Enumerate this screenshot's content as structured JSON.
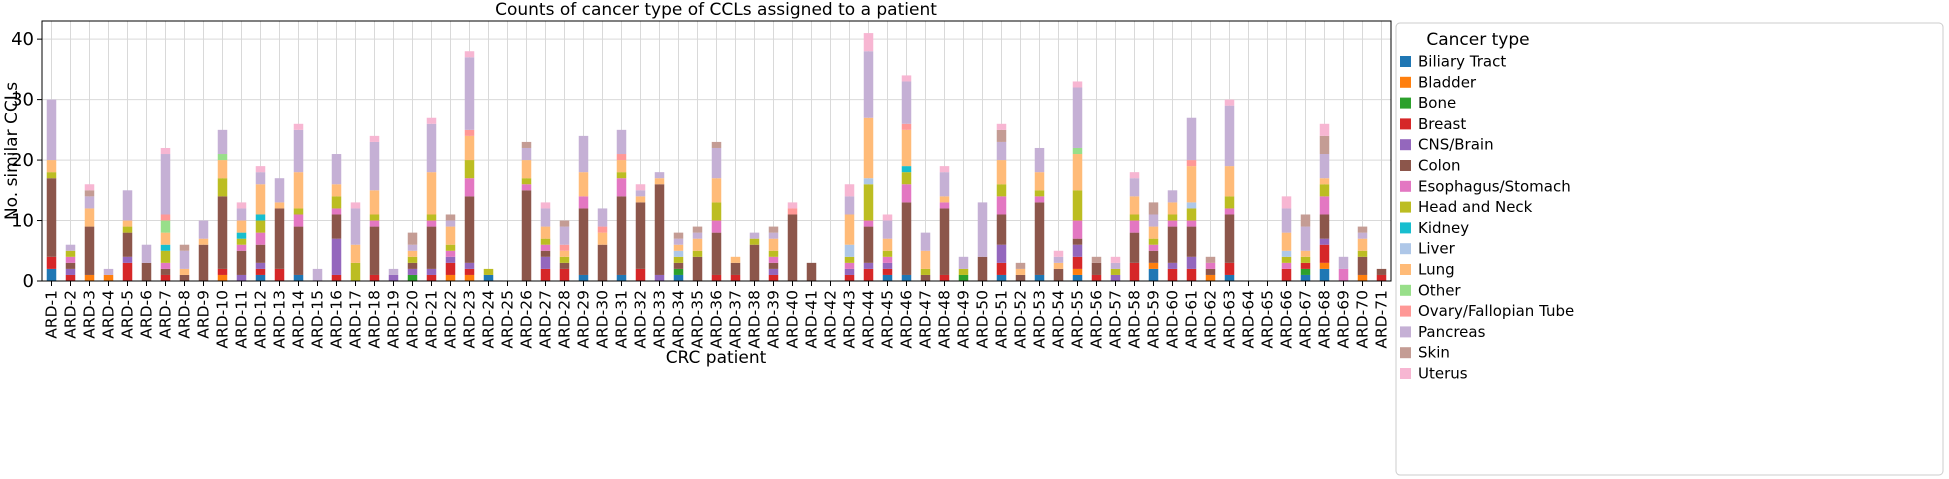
{
  "chart_data": {
    "type": "bar",
    "stacked": true,
    "title": "Counts of cancer type of CCLs assigned to a patient",
    "xlabel": "CRC patient",
    "ylabel": "No. similar CCLs",
    "ylim": [
      0,
      43
    ],
    "yticks": [
      0,
      10,
      20,
      30,
      40
    ],
    "grid": true,
    "legend_title": "Cancer type",
    "legend_position": "right",
    "categories": [
      "ARD-1",
      "ARD-2",
      "ARD-3",
      "ARD-4",
      "ARD-5",
      "ARD-6",
      "ARD-7",
      "ARD-8",
      "ARD-9",
      "ARD-10",
      "ARD-11",
      "ARD-12",
      "ARD-13",
      "ARD-14",
      "ARD-15",
      "ARD-16",
      "ARD-17",
      "ARD-18",
      "ARD-19",
      "ARD-20",
      "ARD-21",
      "ARD-22",
      "ARD-23",
      "ARD-24",
      "ARD-25",
      "ARD-26",
      "ARD-27",
      "ARD-28",
      "ARD-29",
      "ARD-30",
      "ARD-31",
      "ARD-32",
      "ARD-33",
      "ARD-34",
      "ARD-35",
      "ARD-36",
      "ARD-37",
      "ARD-38",
      "ARD-39",
      "ARD-40",
      "ARD-41",
      "ARD-42",
      "ARD-43",
      "ARD-44",
      "ARD-45",
      "ARD-46",
      "ARD-47",
      "ARD-48",
      "ARD-49",
      "ARD-50",
      "ARD-51",
      "ARD-52",
      "ARD-53",
      "ARD-54",
      "ARD-55",
      "ARD-56",
      "ARD-57",
      "ARD-58",
      "ARD-59",
      "ARD-60",
      "ARD-61",
      "ARD-62",
      "ARD-63",
      "ARD-64",
      "ARD-65",
      "ARD-66",
      "ARD-67",
      "ARD-68",
      "ARD-69",
      "ARD-70",
      "ARD-71"
    ],
    "series": [
      {
        "name": "Biliary Tract",
        "color": "#1f77b4",
        "values": [
          2,
          0,
          0,
          0,
          0,
          0,
          0,
          0,
          0,
          0,
          0,
          1,
          0,
          1,
          0,
          0,
          0,
          0,
          0,
          0,
          0,
          0,
          0,
          1,
          0,
          0,
          0,
          0,
          1,
          0,
          1,
          0,
          0,
          1,
          0,
          0,
          0,
          0,
          0,
          0,
          0,
          0,
          0,
          0,
          1,
          1,
          0,
          0,
          0,
          0,
          1,
          0,
          1,
          0,
          1,
          0,
          0,
          0,
          2,
          0,
          0,
          0,
          1,
          0,
          0,
          0,
          1,
          2,
          0,
          0,
          0
        ]
      },
      {
        "name": "Bladder",
        "color": "#ff7f0e",
        "values": [
          0,
          0,
          1,
          1,
          0,
          0,
          0,
          0,
          0,
          1,
          0,
          0,
          0,
          0,
          0,
          0,
          0,
          0,
          0,
          0,
          0,
          1,
          1,
          0,
          0,
          0,
          0,
          0,
          0,
          0,
          0,
          0,
          0,
          0,
          0,
          0,
          0,
          0,
          0,
          0,
          0,
          0,
          0,
          0,
          0,
          0,
          0,
          0,
          0,
          0,
          0,
          0,
          0,
          0,
          1,
          0,
          0,
          0,
          1,
          0,
          0,
          1,
          0,
          0,
          0,
          0,
          0,
          1,
          0,
          1,
          0
        ]
      },
      {
        "name": "Bone",
        "color": "#2ca02c",
        "values": [
          0,
          0,
          0,
          0,
          0,
          0,
          0,
          0,
          0,
          0,
          0,
          0,
          0,
          0,
          0,
          0,
          0,
          0,
          0,
          1,
          0,
          0,
          0,
          0,
          0,
          0,
          0,
          0,
          0,
          0,
          0,
          0,
          0,
          1,
          0,
          0,
          0,
          0,
          0,
          0,
          0,
          0,
          0,
          0,
          0,
          0,
          0,
          0,
          1,
          0,
          0,
          0,
          0,
          0,
          0,
          0,
          0,
          0,
          0,
          0,
          0,
          0,
          0,
          0,
          0,
          0,
          1,
          0,
          0,
          0,
          0
        ]
      },
      {
        "name": "Breast",
        "color": "#d62728",
        "values": [
          2,
          1,
          0,
          0,
          3,
          0,
          1,
          0,
          0,
          1,
          0,
          1,
          2,
          0,
          0,
          1,
          0,
          1,
          0,
          0,
          1,
          2,
          1,
          0,
          0,
          0,
          2,
          2,
          0,
          0,
          0,
          2,
          0,
          0,
          0,
          1,
          1,
          0,
          1,
          0,
          0,
          0,
          1,
          2,
          1,
          0,
          0,
          1,
          0,
          0,
          2,
          0,
          0,
          0,
          2,
          1,
          0,
          3,
          0,
          2,
          2,
          0,
          2,
          0,
          0,
          2,
          1,
          3,
          0,
          0,
          1
        ]
      },
      {
        "name": "CNS/Brain",
        "color": "#9467bd",
        "values": [
          0,
          1,
          0,
          0,
          1,
          0,
          0,
          0,
          0,
          0,
          1,
          1,
          0,
          0,
          0,
          6,
          0,
          0,
          1,
          1,
          1,
          1,
          1,
          0,
          0,
          0,
          2,
          0,
          0,
          0,
          0,
          0,
          1,
          0,
          0,
          0,
          0,
          0,
          1,
          0,
          0,
          0,
          1,
          1,
          1,
          0,
          0,
          0,
          0,
          0,
          3,
          0,
          0,
          0,
          2,
          0,
          1,
          0,
          0,
          1,
          2,
          0,
          0,
          0,
          0,
          0,
          0,
          1,
          0,
          0,
          0
        ]
      },
      {
        "name": "Colon",
        "color": "#8c564b",
        "values": [
          13,
          1,
          8,
          0,
          4,
          3,
          1,
          1,
          6,
          12,
          4,
          3,
          10,
          8,
          0,
          4,
          0,
          8,
          0,
          1,
          7,
          0,
          11,
          0,
          0,
          15,
          1,
          1,
          11,
          6,
          13,
          11,
          15,
          1,
          4,
          7,
          2,
          6,
          1,
          11,
          3,
          0,
          0,
          6,
          0,
          12,
          1,
          11,
          0,
          4,
          5,
          1,
          12,
          2,
          1,
          2,
          0,
          5,
          2,
          6,
          5,
          1,
          8,
          0,
          0,
          0,
          0,
          4,
          0,
          3,
          1
        ]
      },
      {
        "name": "Esophagus/Stomach",
        "color": "#e377c2",
        "values": [
          0,
          1,
          0,
          0,
          0,
          0,
          1,
          0,
          0,
          0,
          1,
          2,
          0,
          2,
          0,
          1,
          0,
          1,
          0,
          0,
          1,
          1,
          3,
          0,
          0,
          1,
          1,
          0,
          2,
          0,
          3,
          0,
          0,
          0,
          0,
          2,
          0,
          0,
          1,
          0,
          0,
          0,
          1,
          1,
          1,
          3,
          0,
          1,
          0,
          0,
          3,
          0,
          1,
          0,
          3,
          0,
          0,
          2,
          1,
          1,
          1,
          1,
          1,
          0,
          0,
          1,
          0,
          3,
          2,
          0,
          0
        ]
      },
      {
        "name": "Head and Neck",
        "color": "#bcbd22",
        "values": [
          1,
          1,
          0,
          0,
          1,
          0,
          2,
          0,
          0,
          3,
          1,
          2,
          0,
          1,
          0,
          2,
          3,
          1,
          0,
          1,
          1,
          1,
          3,
          1,
          0,
          1,
          1,
          1,
          0,
          0,
          1,
          0,
          0,
          1,
          1,
          3,
          0,
          1,
          1,
          0,
          0,
          0,
          1,
          6,
          1,
          2,
          1,
          0,
          1,
          0,
          2,
          0,
          1,
          0,
          5,
          0,
          1,
          1,
          1,
          1,
          2,
          0,
          2,
          0,
          0,
          1,
          1,
          2,
          0,
          1,
          0
        ]
      },
      {
        "name": "Kidney",
        "color": "#17becf",
        "values": [
          0,
          0,
          0,
          0,
          0,
          0,
          1,
          0,
          0,
          0,
          1,
          1,
          0,
          0,
          0,
          0,
          0,
          0,
          0,
          0,
          0,
          0,
          0,
          0,
          0,
          0,
          0,
          0,
          0,
          0,
          0,
          0,
          0,
          0,
          0,
          0,
          0,
          0,
          0,
          0,
          0,
          0,
          0,
          0,
          0,
          1,
          0,
          0,
          0,
          0,
          0,
          0,
          0,
          0,
          0,
          0,
          0,
          0,
          0,
          0,
          0,
          0,
          0,
          0,
          0,
          0,
          0,
          0,
          0,
          0,
          0
        ]
      },
      {
        "name": "Liver",
        "color": "#aec7e8",
        "values": [
          0,
          0,
          0,
          0,
          0,
          0,
          0,
          0,
          0,
          0,
          0,
          0,
          0,
          0,
          0,
          0,
          0,
          0,
          0,
          0,
          0,
          0,
          0,
          0,
          0,
          0,
          0,
          0,
          0,
          0,
          0,
          0,
          0,
          1,
          0,
          0,
          0,
          0,
          0,
          0,
          0,
          0,
          2,
          1,
          0,
          0,
          0,
          0,
          0,
          0,
          0,
          0,
          0,
          0,
          0,
          0,
          0,
          0,
          0,
          0,
          1,
          0,
          0,
          0,
          0,
          1,
          0,
          0,
          0,
          0,
          0
        ]
      },
      {
        "name": "Lung",
        "color": "#ffbb78",
        "values": [
          2,
          0,
          3,
          0,
          1,
          0,
          2,
          1,
          1,
          3,
          2,
          5,
          1,
          6,
          0,
          2,
          3,
          4,
          0,
          1,
          7,
          3,
          4,
          0,
          0,
          3,
          2,
          1,
          4,
          2,
          2,
          1,
          1,
          1,
          2,
          4,
          1,
          0,
          2,
          0,
          0,
          0,
          5,
          10,
          2,
          6,
          3,
          1,
          0,
          0,
          4,
          1,
          3,
          1,
          6,
          0,
          0,
          3,
          2,
          2,
          6,
          0,
          5,
          0,
          0,
          3,
          1,
          1,
          0,
          2,
          0
        ]
      },
      {
        "name": "Other",
        "color": "#98df8a",
        "values": [
          0,
          0,
          0,
          0,
          0,
          0,
          2,
          0,
          0,
          1,
          0,
          0,
          0,
          0,
          0,
          0,
          0,
          0,
          0,
          0,
          0,
          0,
          0,
          0,
          0,
          0,
          0,
          0,
          0,
          0,
          0,
          0,
          0,
          0,
          0,
          0,
          0,
          0,
          0,
          0,
          0,
          0,
          0,
          0,
          0,
          0,
          0,
          0,
          0,
          0,
          0,
          0,
          0,
          0,
          1,
          0,
          0,
          0,
          0,
          0,
          0,
          0,
          0,
          0,
          0,
          0,
          0,
          0,
          0,
          0,
          0
        ]
      },
      {
        "name": "Ovary/Fallopian Tube",
        "color": "#ff9896",
        "values": [
          0,
          0,
          0,
          0,
          0,
          0,
          1,
          0,
          0,
          0,
          0,
          0,
          0,
          0,
          0,
          0,
          0,
          0,
          0,
          0,
          0,
          0,
          1,
          0,
          0,
          0,
          0,
          1,
          0,
          1,
          1,
          0,
          0,
          0,
          0,
          0,
          0,
          0,
          0,
          1,
          0,
          0,
          0,
          0,
          0,
          1,
          0,
          0,
          0,
          0,
          0,
          0,
          0,
          0,
          0,
          0,
          0,
          0,
          0,
          0,
          1,
          0,
          0,
          0,
          0,
          0,
          0,
          0,
          0,
          0,
          0
        ]
      },
      {
        "name": "Pancreas",
        "color": "#c5b0d5",
        "values": [
          10,
          1,
          2,
          1,
          5,
          3,
          10,
          3,
          3,
          4,
          2,
          2,
          4,
          7,
          2,
          5,
          6,
          8,
          1,
          1,
          8,
          1,
          12,
          0,
          0,
          2,
          3,
          3,
          6,
          3,
          4,
          1,
          1,
          1,
          1,
          5,
          0,
          1,
          1,
          0,
          0,
          0,
          3,
          11,
          3,
          7,
          3,
          4,
          2,
          9,
          3,
          0,
          4,
          1,
          10,
          0,
          1,
          3,
          2,
          2,
          7,
          0,
          10,
          0,
          0,
          4,
          4,
          4,
          2,
          1,
          0
        ]
      },
      {
        "name": "Skin",
        "color": "#c49c94",
        "values": [
          0,
          0,
          1,
          0,
          0,
          0,
          0,
          1,
          0,
          0,
          0,
          0,
          0,
          0,
          0,
          0,
          0,
          0,
          0,
          2,
          0,
          1,
          0,
          0,
          0,
          1,
          0,
          1,
          0,
          0,
          0,
          0,
          0,
          1,
          1,
          1,
          0,
          0,
          1,
          0,
          0,
          0,
          0,
          0,
          0,
          0,
          0,
          0,
          0,
          0,
          2,
          1,
          0,
          0,
          0,
          1,
          0,
          0,
          2,
          0,
          0,
          1,
          0,
          0,
          0,
          0,
          2,
          3,
          0,
          1,
          0
        ]
      },
      {
        "name": "Uterus",
        "color": "#f7b6d2",
        "values": [
          0,
          0,
          1,
          0,
          0,
          0,
          1,
          0,
          0,
          0,
          1,
          1,
          0,
          1,
          0,
          0,
          1,
          1,
          0,
          0,
          1,
          0,
          1,
          0,
          0,
          0,
          1,
          0,
          0,
          0,
          0,
          1,
          0,
          0,
          0,
          0,
          0,
          0,
          0,
          1,
          0,
          0,
          2,
          3,
          1,
          1,
          0,
          1,
          0,
          0,
          1,
          0,
          0,
          1,
          1,
          0,
          1,
          1,
          0,
          0,
          0,
          0,
          1,
          0,
          0,
          2,
          0,
          2,
          0,
          0,
          0
        ]
      }
    ]
  }
}
